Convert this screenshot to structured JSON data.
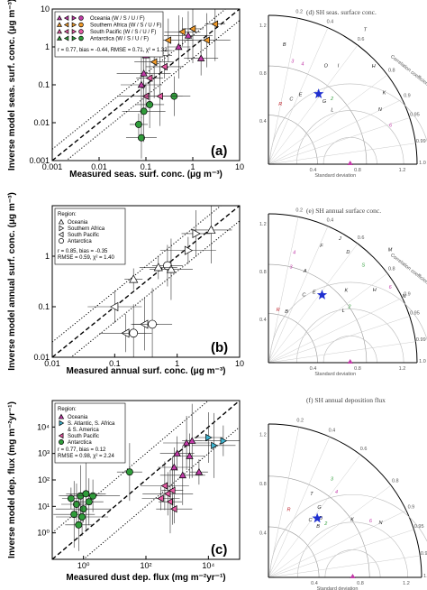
{
  "colors": {
    "oceania": "#c23aa8",
    "southern_africa": "#f09a2a",
    "south_pacific": "#e85aa5",
    "antarctica": "#2f9d3a",
    "s_atlantic": "#3fb6d2",
    "star": "#1f2fd0",
    "ref_r": "#c0202a"
  },
  "chart_data": [
    {
      "id": "a",
      "type": "scatter",
      "panel_label": "(a)",
      "xlabel": "Measured seas. surf. conc.  (μg m⁻³)",
      "ylabel": "Inverse model seas. surf. conc. (μg m⁻³)",
      "xscale": "log",
      "yscale": "log",
      "xlim": [
        0.001,
        10
      ],
      "ylim": [
        0.001,
        10
      ],
      "x_ticks": [
        "0.001",
        "0.01",
        "0.1",
        "1",
        "10"
      ],
      "y_ticks": [
        "0.001",
        "0.01",
        "0.1",
        "1",
        "10"
      ],
      "legend": [
        {
          "label": "Oceania (W / S / U / F)",
          "color": "#c23aa8"
        },
        {
          "label": "Southern Africa (W / S / U / F)",
          "color": "#f09a2a"
        },
        {
          "label": "South Pacific (W / S / U / F)",
          "color": "#e85aa5"
        },
        {
          "label": "Antarctica (W / S / U / F)",
          "color": "#2f9d3a"
        }
      ],
      "stats": "r = 0.77, bias = -0.44, RMSE = 0.71,  χ² = 1.32",
      "points": [
        {
          "x": 0.07,
          "y": 0.009,
          "c": "antarctica"
        },
        {
          "x": 0.08,
          "y": 0.004,
          "c": "antarctica"
        },
        {
          "x": 0.09,
          "y": 0.02,
          "c": "antarctica"
        },
        {
          "x": 0.1,
          "y": 0.05,
          "c": "south_pacific"
        },
        {
          "x": 0.12,
          "y": 0.03,
          "c": "antarctica"
        },
        {
          "x": 0.08,
          "y": 0.1,
          "c": "oceania"
        },
        {
          "x": 0.09,
          "y": 0.2,
          "c": "oceania"
        },
        {
          "x": 0.12,
          "y": 0.15,
          "c": "south_pacific"
        },
        {
          "x": 0.15,
          "y": 0.4,
          "c": "southern_africa"
        },
        {
          "x": 0.1,
          "y": 0.6,
          "c": "oceania"
        },
        {
          "x": 0.2,
          "y": 0.8,
          "c": "oceania"
        },
        {
          "x": 0.25,
          "y": 0.3,
          "c": "south_pacific"
        },
        {
          "x": 0.3,
          "y": 1.5,
          "c": "southern_africa"
        },
        {
          "x": 0.5,
          "y": 1.0,
          "c": "oceania"
        },
        {
          "x": 0.6,
          "y": 2.5,
          "c": "southern_africa"
        },
        {
          "x": 0.8,
          "y": 2.0,
          "c": "oceania"
        },
        {
          "x": 1.0,
          "y": 3.0,
          "c": "southern_africa"
        },
        {
          "x": 1.5,
          "y": 0.5,
          "c": "oceania"
        },
        {
          "x": 2.0,
          "y": 1.5,
          "c": "southern_africa"
        },
        {
          "x": 3.0,
          "y": 4.0,
          "c": "southern_africa"
        },
        {
          "x": 0.4,
          "y": 0.05,
          "c": "antarctica"
        },
        {
          "x": 0.2,
          "y": 0.05,
          "c": "south_pacific"
        }
      ]
    },
    {
      "id": "b",
      "type": "scatter",
      "panel_label": "(b)",
      "xlabel": "Measured annual surf. conc.  (μg m⁻³)",
      "ylabel": "Inverse model annual surf. conc. (μg m⁻³)",
      "xscale": "log",
      "yscale": "log",
      "xlim": [
        0.01,
        10
      ],
      "ylim": [
        0.01,
        10
      ],
      "x_ticks": [
        "0.01",
        "0.1",
        "1",
        "10"
      ],
      "y_ticks": [
        "0.01",
        "0.1",
        "1"
      ],
      "legend_title": "Region:",
      "legend": [
        {
          "label": "Oceania",
          "marker": "triangle-up"
        },
        {
          "label": "Southern Africa",
          "marker": "triangle-right"
        },
        {
          "label": "South Pacific",
          "marker": "triangle-left"
        },
        {
          "label": "Antarctica",
          "marker": "circle"
        }
      ],
      "stats": [
        "r = 0.85, bias = -0.35",
        "RMSE = 0.59,  χ² = 1.40"
      ],
      "points": [
        {
          "x": 0.2,
          "y": 0.35,
          "m": "triangle-up"
        },
        {
          "x": 0.7,
          "y": 0.65,
          "m": "circle"
        },
        {
          "x": 0.8,
          "y": 0.55,
          "m": "triangle-up"
        },
        {
          "x": 1.5,
          "y": 1.3,
          "m": "triangle-right"
        },
        {
          "x": 2.0,
          "y": 2.8,
          "m": "triangle-right"
        },
        {
          "x": 3.5,
          "y": 3.3,
          "m": "triangle-up"
        },
        {
          "x": 0.1,
          "y": 0.1,
          "m": "triangle-left"
        },
        {
          "x": 0.3,
          "y": 0.045,
          "m": "triangle-left"
        },
        {
          "x": 0.4,
          "y": 0.045,
          "m": "circle"
        },
        {
          "x": 0.15,
          "y": 0.03,
          "m": "triangle-left"
        },
        {
          "x": 0.2,
          "y": 0.03,
          "m": "circle"
        },
        {
          "x": 0.5,
          "y": 0.6,
          "m": "triangle-up"
        }
      ]
    },
    {
      "id": "c",
      "type": "scatter",
      "panel_label": "(c)",
      "xlabel": "Measured dust dep. flux  (mg m⁻²yr⁻¹)",
      "ylabel": "Inverse model dep. flux  (mg m⁻²yr⁻¹)",
      "xscale": "log",
      "yscale": "log",
      "xlim": [
        0.1,
        100000
      ],
      "ylim": [
        0.1,
        100000
      ],
      "x_ticks": [
        "10⁰",
        "10²",
        "10⁴"
      ],
      "y_ticks": [
        "10⁰",
        "10¹",
        "10²",
        "10³",
        "10⁴"
      ],
      "legend_title": "Region:",
      "legend": [
        {
          "label": "Oceania",
          "color": "#c23aa8",
          "marker": "triangle-up"
        },
        {
          "label": "S. Atlantic, S. Africa",
          "color": "#3fb6d2",
          "marker": "triangle-right"
        },
        {
          "label": "& S. America",
          "color": "",
          "marker": "none"
        },
        {
          "label": "South Pacific",
          "color": "#e85aa5",
          "marker": "triangle-left"
        },
        {
          "label": "Antarctica",
          "color": "#2f9d3a",
          "marker": "circle"
        }
      ],
      "stats": [
        "r = 0.77, bias = 0.12",
        "RMSE = 0.98,  χ² = 2.24"
      ],
      "points": [
        {
          "x": 0.4,
          "y": 20,
          "c": "antarctica"
        },
        {
          "x": 0.6,
          "y": 12,
          "c": "antarctica"
        },
        {
          "x": 0.8,
          "y": 25,
          "c": "antarctica"
        },
        {
          "x": 1.0,
          "y": 8,
          "c": "antarctica"
        },
        {
          "x": 1.5,
          "y": 15,
          "c": "antarctica"
        },
        {
          "x": 0.5,
          "y": 5,
          "c": "antarctica"
        },
        {
          "x": 2.0,
          "y": 25,
          "c": "antarctica"
        },
        {
          "x": 0.7,
          "y": 2,
          "c": "antarctica"
        },
        {
          "x": 1.2,
          "y": 30,
          "c": "antarctica"
        },
        {
          "x": 0.9,
          "y": 4,
          "c": "antarctica"
        },
        {
          "x": 30,
          "y": 200,
          "c": "antarctica"
        },
        {
          "x": 300,
          "y": 20,
          "c": "south_pacific"
        },
        {
          "x": 500,
          "y": 30,
          "c": "south_pacific"
        },
        {
          "x": 600,
          "y": 15,
          "c": "south_pacific"
        },
        {
          "x": 800,
          "y": 8,
          "c": "south_pacific"
        },
        {
          "x": 400,
          "y": 60,
          "c": "south_pacific"
        },
        {
          "x": 700,
          "y": 40,
          "c": "south_pacific"
        },
        {
          "x": 1000,
          "y": 1000,
          "c": "oceania"
        },
        {
          "x": 2000,
          "y": 2500,
          "c": "oceania"
        },
        {
          "x": 3000,
          "y": 3000,
          "c": "oceania"
        },
        {
          "x": 800,
          "y": 300,
          "c": "oceania"
        },
        {
          "x": 1500,
          "y": 150,
          "c": "oceania"
        },
        {
          "x": 5000,
          "y": 200,
          "c": "oceania"
        },
        {
          "x": 2500,
          "y": 800,
          "c": "oceania"
        },
        {
          "x": 15000,
          "y": 2000,
          "c": "s_atlantic"
        },
        {
          "x": 30000,
          "y": 3000,
          "c": "s_atlantic"
        },
        {
          "x": 10000,
          "y": 4000,
          "c": "s_atlantic"
        }
      ]
    }
  ],
  "taylor": [
    {
      "title": "(d) SH seas. surface conc.",
      "corr_label": "Correlation coefficient",
      "std_label": "Standard deviation",
      "corr_ticks": [
        "0.2",
        "0.4",
        "0.6",
        "0.8",
        "0.9",
        "0.95",
        "0.99",
        "1.0"
      ],
      "std_ticks": [
        "0.4",
        "0.8",
        "1.2"
      ],
      "outer_ticks": [
        "1.2",
        "0.8",
        "0.4"
      ],
      "labels": [
        {
          "t": "K",
          "c": "#222",
          "r": 0.9,
          "a": 0.55
        },
        {
          "t": "N",
          "c": "#222",
          "r": 0.82,
          "a": 0.45
        },
        {
          "t": "6",
          "c": "#c23aa8",
          "r": 0.85,
          "a": 0.3
        },
        {
          "t": "H",
          "c": "#222",
          "r": 0.95,
          "a": 0.75
        },
        {
          "t": "T",
          "c": "#222",
          "r": 1.1,
          "a": 0.95
        },
        {
          "t": "I",
          "c": "#222",
          "r": 0.8,
          "a": 0.95
        },
        {
          "t": "O",
          "c": "#222",
          "r": 0.75,
          "a": 1.05
        },
        {
          "t": "L",
          "c": "#222",
          "r": 0.55,
          "a": 0.7
        },
        {
          "t": "4",
          "c": "#c23aa8",
          "r": 0.7,
          "a": 1.25
        },
        {
          "t": "3",
          "c": "#c23aa8",
          "r": 0.7,
          "a": 1.35
        },
        {
          "t": "B",
          "c": "#222",
          "r": 0.8,
          "a": 1.45
        },
        {
          "t": "A",
          "c": "#222",
          "r": 0.55,
          "a": 0.95
        },
        {
          "t": "E",
          "c": "#222",
          "r": 0.5,
          "a": 1.15
        },
        {
          "t": "C",
          "c": "#222",
          "r": 0.45,
          "a": 1.25
        },
        {
          "t": "G",
          "c": "#222",
          "r": 0.55,
          "a": 0.85
        },
        {
          "t": "2",
          "c": "#2f9d3a",
          "r": 0.6,
          "a": 0.8
        },
        {
          "t": "R",
          "c": "#c0202a",
          "r": 0.4,
          "a": 1.4
        }
      ],
      "star": {
        "r": 0.58,
        "a": 0.95
      }
    },
    {
      "title": "(e) SH annual surface conc.",
      "corr_label": "Correlation coefficient",
      "std_label": "Standard deviation",
      "corr_ticks": [
        "0.2",
        "0.4",
        "0.6",
        "0.8",
        "0.9",
        "0.95",
        "0.99",
        "1.0"
      ],
      "std_ticks": [
        "0.4",
        "0.8",
        "1.2"
      ],
      "outer_ticks": [
        "1.2",
        "0.8",
        "0.4"
      ],
      "labels": [
        {
          "t": "M",
          "c": "#222",
          "r": 1.1,
          "a": 0.75
        },
        {
          "t": "D",
          "c": "#222",
          "r": 0.9,
          "a": 0.95
        },
        {
          "t": "J",
          "c": "#222",
          "r": 0.95,
          "a": 1.05
        },
        {
          "t": "F",
          "c": "#222",
          "r": 0.85,
          "a": 1.15
        },
        {
          "t": "A",
          "c": "#222",
          "r": 0.65,
          "a": 1.2
        },
        {
          "t": "4",
          "c": "#c23aa8",
          "r": 0.75,
          "a": 1.35
        },
        {
          "t": "3",
          "c": "#c23aa8",
          "r": 0.65,
          "a": 1.35
        },
        {
          "t": "6",
          "c": "#c23aa8",
          "r": 0.95,
          "a": 0.55
        },
        {
          "t": "N",
          "c": "#222",
          "r": 1.0,
          "a": 0.45
        },
        {
          "t": "H",
          "c": "#222",
          "r": 0.85,
          "a": 0.6
        },
        {
          "t": "S",
          "c": "#2f9d3a",
          "r": 0.9,
          "a": 0.8
        },
        {
          "t": "E",
          "c": "#222",
          "r": 0.55,
          "a": 1.0
        },
        {
          "t": "K",
          "c": "#222",
          "r": 0.7,
          "a": 0.75
        },
        {
          "t": "C",
          "c": "#222",
          "r": 0.5,
          "a": 1.1
        },
        {
          "t": "L",
          "c": "#222",
          "r": 0.6,
          "a": 0.6
        },
        {
          "t": "B",
          "c": "#222",
          "r": 0.35,
          "a": 1.25
        },
        {
          "t": "2",
          "c": "#2f9d3a",
          "r": 0.65,
          "a": 0.6
        },
        {
          "t": "R",
          "c": "#c0202a",
          "r": 0.35,
          "a": 1.42
        }
      ],
      "star": {
        "r": 0.58,
        "a": 0.9
      }
    },
    {
      "title": "(f) SH annual deposition flux",
      "corr_label": "",
      "std_label": "Standard deviation",
      "corr_ticks": [
        "0.2",
        "0.4",
        "0.6",
        "0.8",
        "0.9",
        "0.95",
        "0.99",
        "1.0"
      ],
      "std_ticks": [
        "0.4",
        "0.8",
        "1.2"
      ],
      "outer_ticks": [
        "1.2",
        "0.8",
        "0.4"
      ],
      "labels": [
        {
          "t": "T",
          "c": "#222",
          "r": 0.6,
          "a": 1.1
        },
        {
          "t": "K",
          "c": "#222",
          "r": 0.65,
          "a": 0.6
        },
        {
          "t": "N",
          "c": "#222",
          "r": 0.8,
          "a": 0.45
        },
        {
          "t": "6",
          "c": "#c23aa8",
          "r": 0.75,
          "a": 0.5
        },
        {
          "t": "4",
          "c": "#c23aa8",
          "r": 0.7,
          "a": 0.9
        },
        {
          "t": "3",
          "c": "#2f9d3a",
          "r": 0.75,
          "a": 1.0
        },
        {
          "t": "G",
          "c": "#222",
          "r": 0.55,
          "a": 0.95
        },
        {
          "t": "D",
          "c": "#222",
          "r": 0.5,
          "a": 0.85
        },
        {
          "t": "C",
          "c": "#222",
          "r": 0.45,
          "a": 0.95
        },
        {
          "t": "2",
          "c": "#2f9d3a",
          "r": 0.5,
          "a": 0.75
        },
        {
          "t": "B",
          "c": "#222",
          "r": 0.45,
          "a": 0.8
        },
        {
          "t": "R",
          "c": "#c0202a",
          "r": 0.45,
          "a": 1.3
        }
      ],
      "star": {
        "r": 0.5,
        "a": 0.88
      }
    }
  ]
}
